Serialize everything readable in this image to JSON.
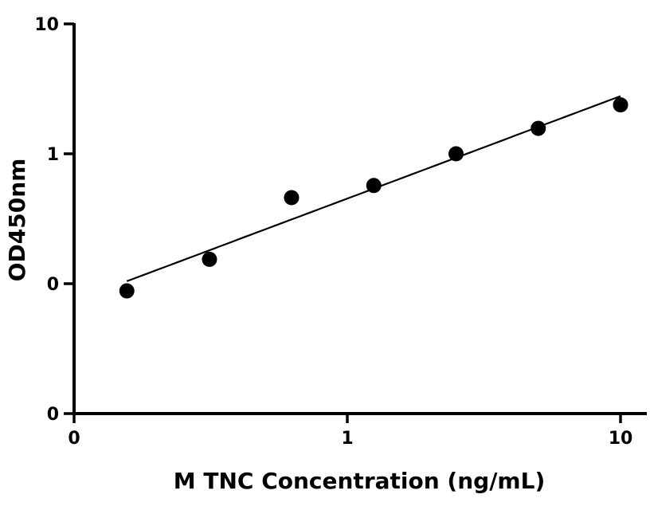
{
  "chart_data": {
    "type": "scatter",
    "title": "",
    "xlabel": "M TNC Concentration (ng/mL)",
    "ylabel": "OD450nm",
    "xscale": "log",
    "yscale": "log",
    "xlim": [
      0.1,
      12
    ],
    "ylim": [
      0.01,
      10
    ],
    "x_ticks": [
      {
        "value": 0.1,
        "label": "0"
      },
      {
        "value": 1,
        "label": "1"
      },
      {
        "value": 10,
        "label": "10"
      }
    ],
    "y_ticks": [
      {
        "value": 0.01,
        "label": "0"
      },
      {
        "value": 0.1,
        "label": "0"
      },
      {
        "value": 1,
        "label": "1"
      },
      {
        "value": 10,
        "label": "10"
      }
    ],
    "series": [
      {
        "marker": "circle",
        "color": "#000000",
        "points": [
          {
            "x": 0.156,
            "y": 0.088
          },
          {
            "x": 0.313,
            "y": 0.154
          },
          {
            "x": 0.625,
            "y": 0.46
          },
          {
            "x": 1.25,
            "y": 0.57
          },
          {
            "x": 2.5,
            "y": 1.0
          },
          {
            "x": 5,
            "y": 1.57
          },
          {
            "x": 10,
            "y": 2.38
          }
        ]
      }
    ],
    "fit_curve": true,
    "grid": false,
    "legend": "none"
  }
}
